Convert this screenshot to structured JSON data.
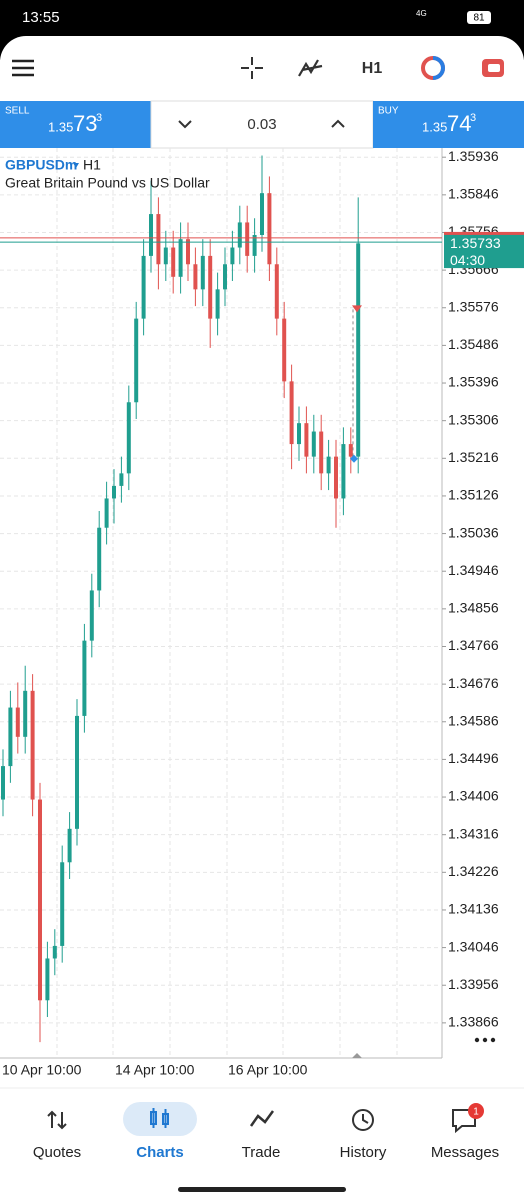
{
  "status_bar": {
    "time": "13:55",
    "network": "4G",
    "battery": "81"
  },
  "toolbar": {
    "timeframe": "H1"
  },
  "trade_panel": {
    "sell": {
      "label": "SELL",
      "price_main": "1.35",
      "price_big": "73",
      "price_sup": "3"
    },
    "volume": "0.03",
    "buy": {
      "label": "BUY",
      "price_main": "1.35",
      "price_big": "74",
      "price_sup": "3"
    }
  },
  "chart": {
    "type": "candlestick",
    "symbol": "GBPUSDm",
    "timeframe": "H1",
    "description": "Great Britain Pound vs US Dollar",
    "ylim": [
      1.33782,
      1.35958
    ],
    "yticks": [
      1.35936,
      1.35846,
      1.35756,
      1.35666,
      1.35576,
      1.35486,
      1.35396,
      1.35306,
      1.35216,
      1.35126,
      1.35036,
      1.34946,
      1.34856,
      1.34766,
      1.34676,
      1.34586,
      1.34496,
      1.34406,
      1.34316,
      1.34226,
      1.34136,
      1.34046,
      1.33956,
      1.33866
    ],
    "x_labels": [
      "10 Apr 10:00",
      "14 Apr 10:00",
      "16 Apr 10:00"
    ],
    "up_color": "#1f9e8f",
    "down_color": "#e0524f",
    "candles": [
      [
        1.344,
        1.3452,
        1.3436,
        1.3448
      ],
      [
        1.3448,
        1.3466,
        1.3444,
        1.3462
      ],
      [
        1.3462,
        1.3468,
        1.3451,
        1.3455
      ],
      [
        1.3455,
        1.3472,
        1.3451,
        1.3466
      ],
      [
        1.3466,
        1.347,
        1.3436,
        1.344
      ],
      [
        1.344,
        1.3444,
        1.3382,
        1.3392
      ],
      [
        1.3392,
        1.3406,
        1.3388,
        1.3402
      ],
      [
        1.3402,
        1.3409,
        1.3398,
        1.3405
      ],
      [
        1.3405,
        1.3429,
        1.3401,
        1.3425
      ],
      [
        1.3425,
        1.3437,
        1.3421,
        1.3433
      ],
      [
        1.3433,
        1.3464,
        1.3429,
        1.346
      ],
      [
        1.346,
        1.3482,
        1.3456,
        1.3478
      ],
      [
        1.3478,
        1.3494,
        1.3474,
        1.349
      ],
      [
        1.349,
        1.3509,
        1.3486,
        1.3505
      ],
      [
        1.3505,
        1.3516,
        1.3501,
        1.3512
      ],
      [
        1.3512,
        1.3519,
        1.3506,
        1.3515
      ],
      [
        1.3515,
        1.3522,
        1.3511,
        1.3518
      ],
      [
        1.3518,
        1.3539,
        1.3514,
        1.3535
      ],
      [
        1.3535,
        1.3559,
        1.3531,
        1.3555
      ],
      [
        1.3555,
        1.3574,
        1.3551,
        1.357
      ],
      [
        1.357,
        1.3588,
        1.3566,
        1.358
      ],
      [
        1.358,
        1.3584,
        1.3562,
        1.3568
      ],
      [
        1.3568,
        1.3576,
        1.3564,
        1.3572
      ],
      [
        1.3572,
        1.3576,
        1.3561,
        1.3565
      ],
      [
        1.3565,
        1.3578,
        1.3561,
        1.3574
      ],
      [
        1.3574,
        1.3578,
        1.3564,
        1.3568
      ],
      [
        1.3568,
        1.3572,
        1.3558,
        1.3562
      ],
      [
        1.3562,
        1.3574,
        1.3558,
        1.357
      ],
      [
        1.357,
        1.3574,
        1.3548,
        1.3555
      ],
      [
        1.3555,
        1.3566,
        1.3551,
        1.3562
      ],
      [
        1.3562,
        1.3572,
        1.3558,
        1.3568
      ],
      [
        1.3568,
        1.3576,
        1.3564,
        1.3572
      ],
      [
        1.3572,
        1.3582,
        1.3568,
        1.3578
      ],
      [
        1.3578,
        1.3582,
        1.3566,
        1.357
      ],
      [
        1.357,
        1.3579,
        1.3566,
        1.3575
      ],
      [
        1.3575,
        1.3594,
        1.3571,
        1.3585
      ],
      [
        1.3585,
        1.3589,
        1.3564,
        1.3568
      ],
      [
        1.3568,
        1.3572,
        1.3551,
        1.3555
      ],
      [
        1.3555,
        1.3559,
        1.3536,
        1.354
      ],
      [
        1.354,
        1.3544,
        1.3519,
        1.3525
      ],
      [
        1.3525,
        1.3534,
        1.3521,
        1.353
      ],
      [
        1.353,
        1.3534,
        1.3518,
        1.3522
      ],
      [
        1.3522,
        1.3532,
        1.3518,
        1.3528
      ],
      [
        1.3528,
        1.3532,
        1.3514,
        1.3518
      ],
      [
        1.3518,
        1.3526,
        1.3514,
        1.3522
      ],
      [
        1.3522,
        1.3526,
        1.3505,
        1.3512
      ],
      [
        1.3512,
        1.3529,
        1.3508,
        1.3525
      ],
      [
        1.3525,
        1.3529,
        1.3518,
        1.3522
      ],
      [
        1.3522,
        1.3584,
        1.3518,
        1.3573
      ]
    ],
    "bid_line": 1.35733,
    "ask_line": 1.35743,
    "bid_label": "1.35733",
    "countdown": "04:30",
    "trade_markers": [
      1.35572,
      1.35215
    ]
  },
  "nav": {
    "items": [
      "Quotes",
      "Charts",
      "Trade",
      "History",
      "Messages"
    ],
    "badge": "1"
  }
}
